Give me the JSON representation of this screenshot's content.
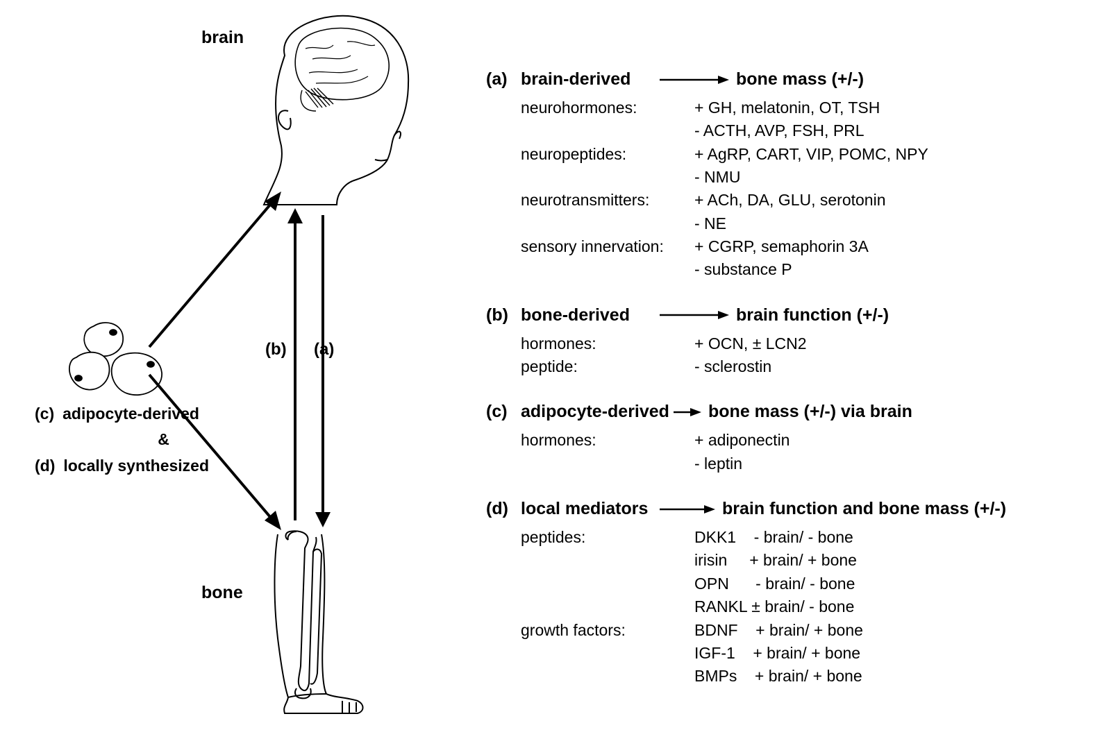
{
  "diagram": {
    "brain_label": "brain",
    "bone_label": "bone",
    "arrow_a": "(a)",
    "arrow_b": "(b)",
    "adipocyte": {
      "tag_c": "(c)",
      "text_c": "adipocyte-derived",
      "amp": "&",
      "tag_d": "(d)",
      "text_d": "locally synthesized"
    },
    "stroke": "#000000",
    "fill_bg": "#ffffff"
  },
  "sections": {
    "a": {
      "tag": "(a)",
      "lhs": "brain-derived",
      "rhs": "bone mass (+/-)",
      "rows": [
        {
          "category": "neurohormones:",
          "values": "+ GH, melatonin, OT, TSH"
        },
        {
          "category": "",
          "values": "- ACTH, AVP, FSH, PRL"
        },
        {
          "category": "neuropeptides:",
          "values": "+ AgRP, CART, VIP, POMC, NPY"
        },
        {
          "category": "",
          "values": "- NMU"
        },
        {
          "category": "neurotransmitters:",
          "values": "+ ACh, DA, GLU, serotonin"
        },
        {
          "category": "",
          "values": "- NE"
        },
        {
          "category": "sensory innervation:",
          "values": "+ CGRP, semaphorin 3A"
        },
        {
          "category": "",
          "values": "- substance P"
        }
      ]
    },
    "b": {
      "tag": "(b)",
      "lhs": "bone-derived",
      "rhs": "brain function (+/-)",
      "rows": [
        {
          "category": "hormones:",
          "values": "+ OCN, ± LCN2"
        },
        {
          "category": "peptide:",
          "values": "- sclerostin"
        }
      ]
    },
    "c": {
      "tag": "(c)",
      "lhs": "adipocyte-derived",
      "rhs": "bone mass (+/-) via brain",
      "rows": [
        {
          "category": "hormones:",
          "values": "+ adiponectin"
        },
        {
          "category": "",
          "values": "- leptin"
        }
      ]
    },
    "d": {
      "tag": "(d)",
      "lhs": "local mediators",
      "rhs": "brain function and bone mass (+/-)",
      "rows": [
        {
          "category": "peptides:",
          "values": "DKK1    - brain/ - bone"
        },
        {
          "category": "",
          "values": "irisin     + brain/ + bone"
        },
        {
          "category": "",
          "values": "OPN      - brain/ - bone"
        },
        {
          "category": "",
          "values": "RANKL ± brain/ - bone"
        },
        {
          "category": "growth factors:",
          "values": "BDNF    + brain/ + bone"
        },
        {
          "category": "",
          "values": "IGF-1    + brain/ + bone"
        },
        {
          "category": "",
          "values": "BMPs    + brain/ + bone"
        }
      ]
    }
  },
  "style": {
    "arrow_width": 100,
    "arrow_stroke": "#000000",
    "arrow_sw": 2.5
  }
}
